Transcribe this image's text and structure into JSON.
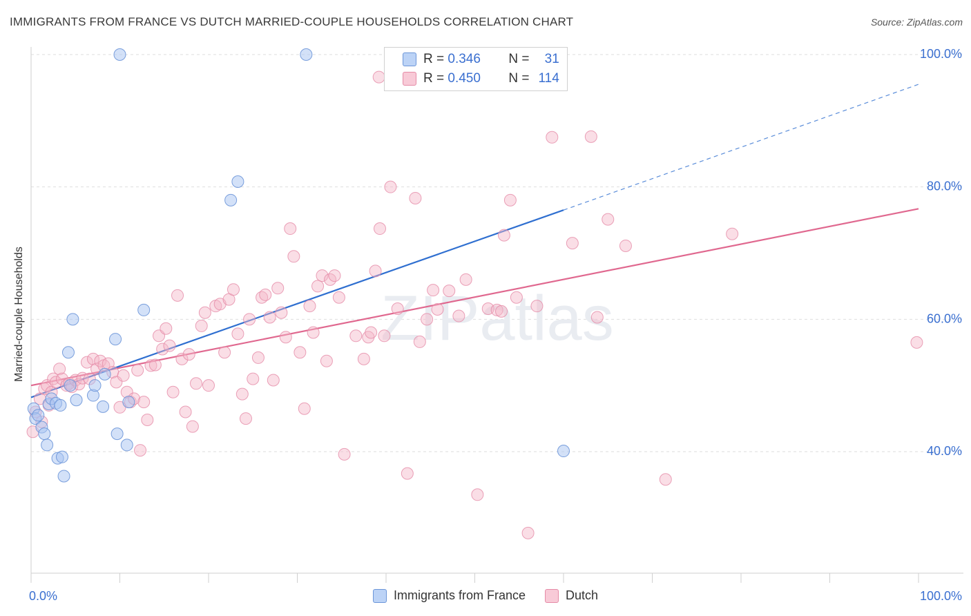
{
  "header": {
    "title": "IMMIGRANTS FROM FRANCE VS DUTCH MARRIED-COUPLE HOUSEHOLDS CORRELATION CHART",
    "source": "Source: ZipAtlas.com"
  },
  "colors": {
    "france_fill": "#a7c4f2",
    "france_stroke": "#6b95d8",
    "france_line": "#2f6fd0",
    "dutch_fill": "#f5b6c8",
    "dutch_stroke": "#e58aa6",
    "dutch_line": "#e0688f",
    "accent_text": "#3a6fd0"
  },
  "legend": {
    "rows": [
      {
        "r_label": "R =",
        "r_value": "0.346",
        "n_label": "N =",
        "n_value": "31"
      },
      {
        "r_label": "R =",
        "r_value": "0.450",
        "n_label": "N =",
        "n_value": "114"
      }
    ]
  },
  "chart_data": {
    "type": "scatter",
    "title": "IMMIGRANTS FROM FRANCE VS DUTCH MARRIED-COUPLE HOUSEHOLDS CORRELATION CHART",
    "xlabel": "",
    "ylabel": "Married-couple Households",
    "xlim": [
      0,
      100
    ],
    "ylim": [
      20,
      102
    ],
    "x_tick_labels": [
      "0.0%",
      "100.0%"
    ],
    "y_ticks": [
      40,
      60,
      80,
      100
    ],
    "y_tick_labels": [
      "40.0%",
      "60.0%",
      "80.0%",
      "100.0%"
    ],
    "watermark": "ZIPatlas",
    "series": [
      {
        "name": "Immigrants from France",
        "r": 0.346,
        "n": 31,
        "trend": {
          "x0": 0,
          "y0": 48.2,
          "x1": 60,
          "y1": 76.5,
          "dash_x1": 100,
          "dash_y1": 95.5
        },
        "points": [
          [
            0.3,
            46.5
          ],
          [
            0.5,
            45.0
          ],
          [
            0.8,
            45.5
          ],
          [
            1.2,
            43.7
          ],
          [
            1.5,
            42.7
          ],
          [
            1.8,
            41.0
          ],
          [
            2.0,
            47.2
          ],
          [
            2.3,
            48.0
          ],
          [
            2.8,
            47.3
          ],
          [
            3.0,
            39.0
          ],
          [
            3.3,
            47.0
          ],
          [
            3.5,
            39.2
          ],
          [
            3.7,
            36.3
          ],
          [
            4.2,
            55.0
          ],
          [
            4.4,
            50.0
          ],
          [
            4.7,
            60.0
          ],
          [
            5.1,
            47.8
          ],
          [
            7.0,
            48.5
          ],
          [
            7.2,
            50.0
          ],
          [
            8.1,
            46.8
          ],
          [
            8.3,
            51.7
          ],
          [
            9.5,
            57.0
          ],
          [
            9.7,
            42.7
          ],
          [
            10.0,
            100.0
          ],
          [
            10.8,
            41.0
          ],
          [
            11.0,
            47.5
          ],
          [
            12.7,
            61.4
          ],
          [
            22.5,
            78.0
          ],
          [
            23.3,
            80.8
          ],
          [
            31.0,
            100.0
          ],
          [
            60.0,
            40.1
          ]
        ]
      },
      {
        "name": "Dutch",
        "r": 0.45,
        "n": 114,
        "trend": {
          "x0": 0,
          "y0": 50.0,
          "x1": 100,
          "y1": 76.7
        },
        "points": [
          [
            0.2,
            43.0
          ],
          [
            0.5,
            46.0
          ],
          [
            1.0,
            48.0
          ],
          [
            1.2,
            44.5
          ],
          [
            1.5,
            49.5
          ],
          [
            1.8,
            50.0
          ],
          [
            2.0,
            47.0
          ],
          [
            2.3,
            49.0
          ],
          [
            2.5,
            51.0
          ],
          [
            2.8,
            50.5
          ],
          [
            3.2,
            52.5
          ],
          [
            3.5,
            51.0
          ],
          [
            4.0,
            50.0
          ],
          [
            4.3,
            50.3
          ],
          [
            4.6,
            49.8
          ],
          [
            5.0,
            50.8
          ],
          [
            5.4,
            50.2
          ],
          [
            5.8,
            51.1
          ],
          [
            6.3,
            53.5
          ],
          [
            6.6,
            51.0
          ],
          [
            7.0,
            54.0
          ],
          [
            7.4,
            52.5
          ],
          [
            7.8,
            53.7
          ],
          [
            8.2,
            53.0
          ],
          [
            8.7,
            53.3
          ],
          [
            9.2,
            52.0
          ],
          [
            9.6,
            50.5
          ],
          [
            10.0,
            46.7
          ],
          [
            10.4,
            51.5
          ],
          [
            10.8,
            49.0
          ],
          [
            11.2,
            47.5
          ],
          [
            11.6,
            48.0
          ],
          [
            12.0,
            52.3
          ],
          [
            12.3,
            40.2
          ],
          [
            12.7,
            47.5
          ],
          [
            13.1,
            44.8
          ],
          [
            13.5,
            53.0
          ],
          [
            14.0,
            53.1
          ],
          [
            14.4,
            57.5
          ],
          [
            14.8,
            55.5
          ],
          [
            15.2,
            58.6
          ],
          [
            15.6,
            56.0
          ],
          [
            16.0,
            49.0
          ],
          [
            16.5,
            63.6
          ],
          [
            17.0,
            54.0
          ],
          [
            17.4,
            46.0
          ],
          [
            17.8,
            54.7
          ],
          [
            18.2,
            43.8
          ],
          [
            18.6,
            50.3
          ],
          [
            19.2,
            59.0
          ],
          [
            19.6,
            61.0
          ],
          [
            20.0,
            50.0
          ],
          [
            20.8,
            62.0
          ],
          [
            21.3,
            62.3
          ],
          [
            21.8,
            55.0
          ],
          [
            22.3,
            63.0
          ],
          [
            22.8,
            64.5
          ],
          [
            23.3,
            57.8
          ],
          [
            23.8,
            48.7
          ],
          [
            24.2,
            45.0
          ],
          [
            24.6,
            60.0
          ],
          [
            25.0,
            51.0
          ],
          [
            25.6,
            54.2
          ],
          [
            26.0,
            63.3
          ],
          [
            26.4,
            63.7
          ],
          [
            26.9,
            60.3
          ],
          [
            27.3,
            50.8
          ],
          [
            27.8,
            64.7
          ],
          [
            28.2,
            61.0
          ],
          [
            28.7,
            57.3
          ],
          [
            29.2,
            73.7
          ],
          [
            29.6,
            69.5
          ],
          [
            30.3,
            55.0
          ],
          [
            30.8,
            46.5
          ],
          [
            31.4,
            62.0
          ],
          [
            31.8,
            58.0
          ],
          [
            32.3,
            65.0
          ],
          [
            32.8,
            66.6
          ],
          [
            33.3,
            53.7
          ],
          [
            33.7,
            66.0
          ],
          [
            34.2,
            66.6
          ],
          [
            34.7,
            63.3
          ],
          [
            35.3,
            39.6
          ],
          [
            36.6,
            57.5
          ],
          [
            37.5,
            54.0
          ],
          [
            38.0,
            57.3
          ],
          [
            38.3,
            58.0
          ],
          [
            38.8,
            67.3
          ],
          [
            39.3,
            73.7
          ],
          [
            39.8,
            57.5
          ],
          [
            40.5,
            80.0
          ],
          [
            41.3,
            61.6
          ],
          [
            42.4,
            36.7
          ],
          [
            43.3,
            78.3
          ],
          [
            43.8,
            56.6
          ],
          [
            44.6,
            60.0
          ],
          [
            45.3,
            64.4
          ],
          [
            45.8,
            61.5
          ],
          [
            47.1,
            64.3
          ],
          [
            48.2,
            60.5
          ],
          [
            49.0,
            66.0
          ],
          [
            50.3,
            33.5
          ],
          [
            51.5,
            61.6
          ],
          [
            52.5,
            61.4
          ],
          [
            53.0,
            61.2
          ],
          [
            53.3,
            72.7
          ],
          [
            54.0,
            78.0
          ],
          [
            54.7,
            63.3
          ],
          [
            56.0,
            27.7
          ],
          [
            57.0,
            62.0
          ],
          [
            58.7,
            87.5
          ],
          [
            61.0,
            71.5
          ],
          [
            63.1,
            87.6
          ],
          [
            63.8,
            60.3
          ],
          [
            65.0,
            75.1
          ],
          [
            67.0,
            71.1
          ],
          [
            71.5,
            35.8
          ],
          [
            79.0,
            72.9
          ],
          [
            99.8,
            56.5
          ],
          [
            39.2,
            96.6
          ]
        ]
      }
    ]
  },
  "bottom_legend": {
    "items": [
      {
        "label": "Immigrants from France"
      },
      {
        "label": "Dutch"
      }
    ]
  }
}
